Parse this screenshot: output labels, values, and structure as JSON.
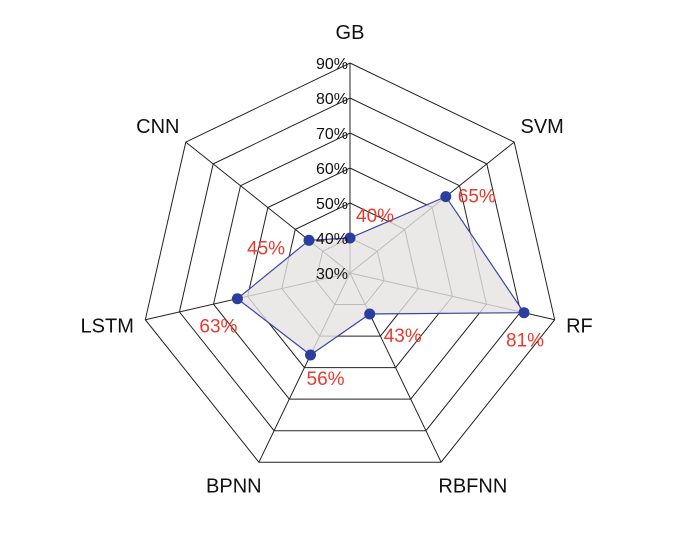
{
  "chart_data": {
    "type": "radar",
    "categories": [
      "GB",
      "SVM",
      "RF",
      "RBFNN",
      "BPNN",
      "LSTM",
      "CNN"
    ],
    "values": [
      40,
      65,
      81,
      43,
      56,
      63,
      45
    ],
    "value_labels": [
      "40%",
      "65%",
      "81%",
      "43%",
      "56%",
      "63%",
      "45%"
    ],
    "rmin": 30,
    "rmax": 90,
    "ticks": [
      30,
      40,
      50,
      60,
      70,
      80,
      90
    ],
    "tick_labels": [
      "30%",
      "40%",
      "50%",
      "60%",
      "70%",
      "80%",
      "90%"
    ],
    "grid": true,
    "colors": {
      "grid": "#222222",
      "series_line": "#3b43a8",
      "series_fill": "#e6e4e2",
      "marker": "#2b3ea0",
      "value_label": "#e83a2e"
    }
  }
}
